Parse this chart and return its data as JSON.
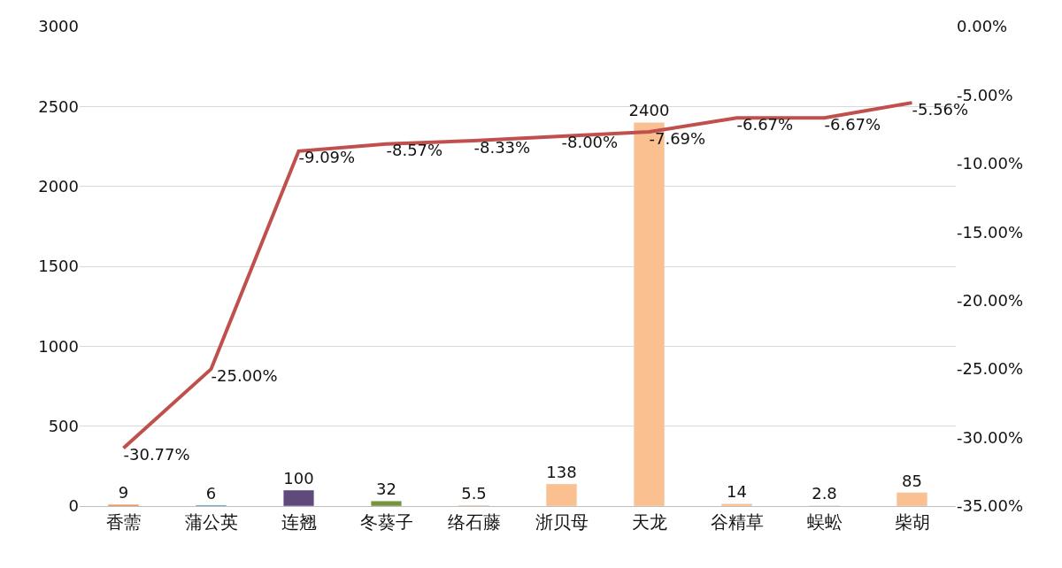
{
  "chart_data": {
    "type": "bar",
    "categories": [
      "香薷",
      "蒲公英",
      "连翘",
      "冬葵子",
      "络石藤",
      "浙贝母",
      "天龙",
      "谷精草",
      "蜈蚣",
      "柴胡"
    ],
    "series": [
      {
        "colors": [
          "#ed7d31",
          "#31859c",
          "#604a7b",
          "#77933c",
          "#fac090",
          "#fac090",
          "#fac090",
          "#fac090",
          "#fac090",
          "#fac090"
        ],
        "values": [
          9,
          6,
          100,
          32,
          5.5,
          138,
          2400,
          14,
          2.8,
          85
        ]
      },
      {
        "type": "line",
        "axis": "y2",
        "color": "#c0504d",
        "values": [
          -30.77,
          -25.0,
          -9.09,
          -8.57,
          -8.33,
          -8.0,
          -7.69,
          -6.67,
          -6.67,
          -5.56
        ],
        "value_labels": [
          "-30.77%",
          "-25.00%",
          "-9.09%",
          "-8.57%",
          "-8.33%",
          "-8.00%",
          "-7.69%",
          "-6.67%",
          "-6.67%",
          "-5.56%"
        ]
      }
    ],
    "data_labels": true,
    "ylim": [
      0,
      3000
    ],
    "yticks": [
      0,
      500,
      1000,
      1500,
      2000,
      2500,
      3000
    ],
    "y2lim": [
      -35,
      0
    ],
    "y2ticks": [
      {
        "value": -35,
        "label": "-35.00%"
      },
      {
        "value": -30,
        "label": "-30.00%"
      },
      {
        "value": -25,
        "label": "-25.00%"
      },
      {
        "value": -20,
        "label": "-20.00%"
      },
      {
        "value": -15,
        "label": "-15.00%"
      },
      {
        "value": -10,
        "label": "-10.00%"
      },
      {
        "value": -5,
        "label": "-5.00%"
      },
      {
        "value": 0,
        "label": "0.00%"
      }
    ],
    "grid": "y",
    "marker": "none",
    "line_style": "solid"
  }
}
